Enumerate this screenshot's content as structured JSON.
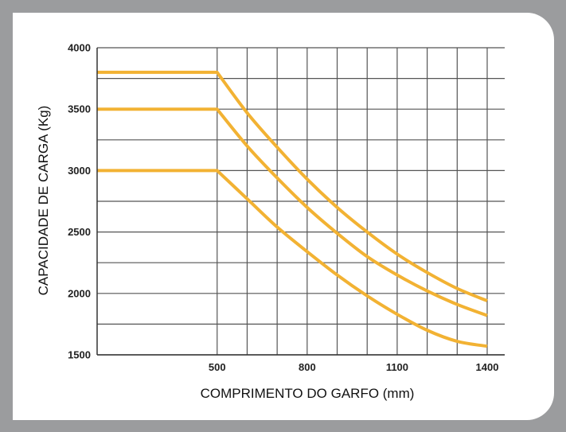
{
  "chart_data": {
    "type": "line",
    "xlabel": "COMPRIMENTO DO GARFO (mm)",
    "ylabel": "CAPACIDADE DE CARGA (Kg)",
    "xlim": [
      100,
      1400
    ],
    "ylim": [
      1500,
      4000
    ],
    "x_ticks": [
      500,
      800,
      1100,
      1400
    ],
    "y_ticks": [
      1500,
      2000,
      2500,
      3000,
      3500,
      4000
    ],
    "grid": true,
    "line_color": "#f2b233",
    "series": [
      {
        "x": [
          100,
          500,
          600,
          700,
          800,
          900,
          1000,
          1100,
          1200,
          1300,
          1400
        ],
        "values": [
          3800,
          3800,
          3470,
          3190,
          2930,
          2700,
          2500,
          2320,
          2170,
          2040,
          1940
        ]
      },
      {
        "x": [
          100,
          500,
          600,
          700,
          800,
          900,
          1000,
          1100,
          1200,
          1300,
          1400
        ],
        "values": [
          3500,
          3500,
          3200,
          2940,
          2700,
          2490,
          2300,
          2150,
          2020,
          1910,
          1820
        ]
      },
      {
        "x": [
          100,
          500,
          600,
          700,
          800,
          900,
          1000,
          1100,
          1200,
          1300,
          1400
        ],
        "values": [
          3000,
          3000,
          2770,
          2540,
          2340,
          2150,
          1980,
          1830,
          1700,
          1610,
          1570
        ]
      }
    ]
  }
}
